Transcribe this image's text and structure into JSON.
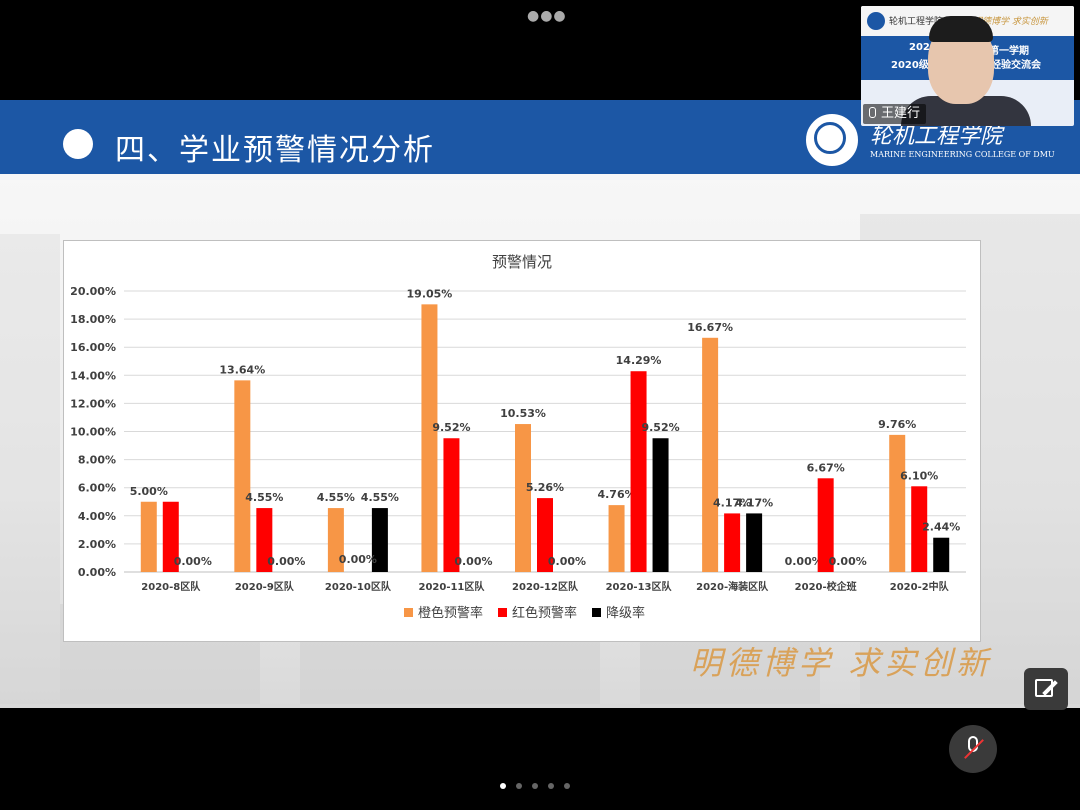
{
  "slide": {
    "title": "四、学业预警情况分析",
    "college_name_cn": "轮机工程学院",
    "college_name_en": "MARINE ENGINEERING COLLEGE OF DMU",
    "slogan": "明德博学 求实创新"
  },
  "video": {
    "speaker_name": "王建行",
    "banner_line1_left": "202",
    "banner_line1_right": "第一学期",
    "banner_line2_left": "2020级",
    "banner_line2_right": "经验交流会",
    "pip_logo_text": "轮机工程学院",
    "pip_slogan": "明德博学 求实创新"
  },
  "colors": {
    "orange": "#f79646",
    "red": "#ff0000",
    "black": "#000000",
    "banner_blue": "#1c57a5"
  },
  "icons": [
    "more-dots-icon",
    "college-logo-icon",
    "edit-icon",
    "mic-muted-icon",
    "mic-icon"
  ],
  "chart_data": {
    "type": "bar",
    "title": "预警情况",
    "categories": [
      "2020-8区队",
      "2020-9区队",
      "2020-10区队",
      "2020-11区队",
      "2020-12区队",
      "2020-13区队",
      "2020-海装区队",
      "2020-校企班",
      "2020-2中队"
    ],
    "series": [
      {
        "name": "橙色预警率",
        "color": "#f79646",
        "values": [
          5.0,
          13.64,
          4.55,
          19.05,
          10.53,
          4.76,
          16.67,
          0.0,
          9.76
        ],
        "labels": [
          "5.00%",
          "13.64%",
          "4.55%",
          "19.05%",
          "10.53%",
          "4.76%",
          "16.67%",
          "0.00%",
          "9.76%"
        ]
      },
      {
        "name": "红色预警率",
        "color": "#ff0000",
        "values": [
          5.0,
          4.55,
          0.0,
          9.52,
          5.26,
          14.29,
          4.17,
          6.67,
          6.1
        ],
        "labels": [
          "",
          "4.55%",
          "",
          "9.52%",
          "5.26%",
          "14.29%",
          "4.17%",
          "6.67%",
          "6.10%"
        ]
      },
      {
        "name": "降级率",
        "color": "#000000",
        "values": [
          0.0,
          0.0,
          4.55,
          0.0,
          0.0,
          9.52,
          4.17,
          0.0,
          2.44
        ],
        "labels": [
          "0.00%",
          "0.00%",
          "4.55%",
          "0.00%",
          "0.00%",
          "9.52%",
          "4.17%",
          "0.00%",
          "2.44%"
        ]
      }
    ],
    "red_zero_labels": [
      "",
      "",
      "0.00%",
      "",
      "",
      "",
      "",
      "",
      ""
    ],
    "ylim": [
      0,
      20
    ],
    "yticks": [
      "0.00%",
      "2.00%",
      "4.00%",
      "6.00%",
      "8.00%",
      "10.00%",
      "12.00%",
      "14.00%",
      "16.00%",
      "18.00%",
      "20.00%"
    ],
    "grid": true,
    "legend": "bottom"
  }
}
